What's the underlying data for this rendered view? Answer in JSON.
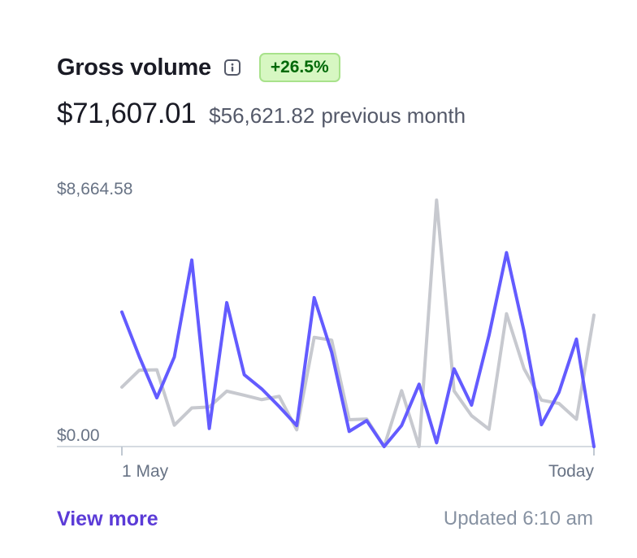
{
  "header": {
    "title": "Gross volume",
    "info_icon": "info-icon",
    "change_badge": "+26.5%"
  },
  "summary": {
    "current_value": "$71,607.01",
    "previous_value": "$56,621.82",
    "previous_label": "previous month"
  },
  "footer": {
    "view_more": "View more",
    "updated": "Updated 6:10 am"
  },
  "colors": {
    "current_series": "#635bff",
    "previous_series": "#c7c9cf",
    "badge_bg": "#d7f7c2",
    "badge_text": "#006908",
    "link": "#5b3bd7"
  },
  "chart_data": {
    "type": "line",
    "title": "",
    "xlabel": "",
    "ylabel": "",
    "ylim": [
      0,
      8664.58
    ],
    "y_tick_labels": [
      "$8,664.58",
      "$0.00"
    ],
    "x_tick_labels": [
      "1 May",
      "Today"
    ],
    "x": [
      1,
      2,
      3,
      4,
      5,
      6,
      7,
      8,
      9,
      10,
      11,
      12,
      13,
      14,
      15,
      16,
      17,
      18,
      19,
      20,
      21,
      22,
      23,
      24,
      25,
      26,
      27,
      28
    ],
    "series": [
      {
        "key": "current",
        "values": [
          4729,
          3158,
          1714,
          3149,
          6557,
          636,
          5060,
          2526,
          2026,
          1405,
          740,
          5235,
          3312,
          533,
          912,
          0,
          740,
          2193,
          133,
          2734,
          1457,
          3913,
          6816,
          4051,
          769,
          1909,
          3777,
          0
        ]
      },
      {
        "key": "previous",
        "values": [
          2090,
          2686,
          2698,
          752,
          1357,
          1393,
          1948,
          1802,
          1651,
          1766,
          590,
          3840,
          3740,
          942,
          970,
          0,
          1966,
          0,
          8664,
          1957,
          1087,
          609,
          4668,
          2738,
          1632,
          1515,
          960,
          4620
        ]
      }
    ]
  }
}
